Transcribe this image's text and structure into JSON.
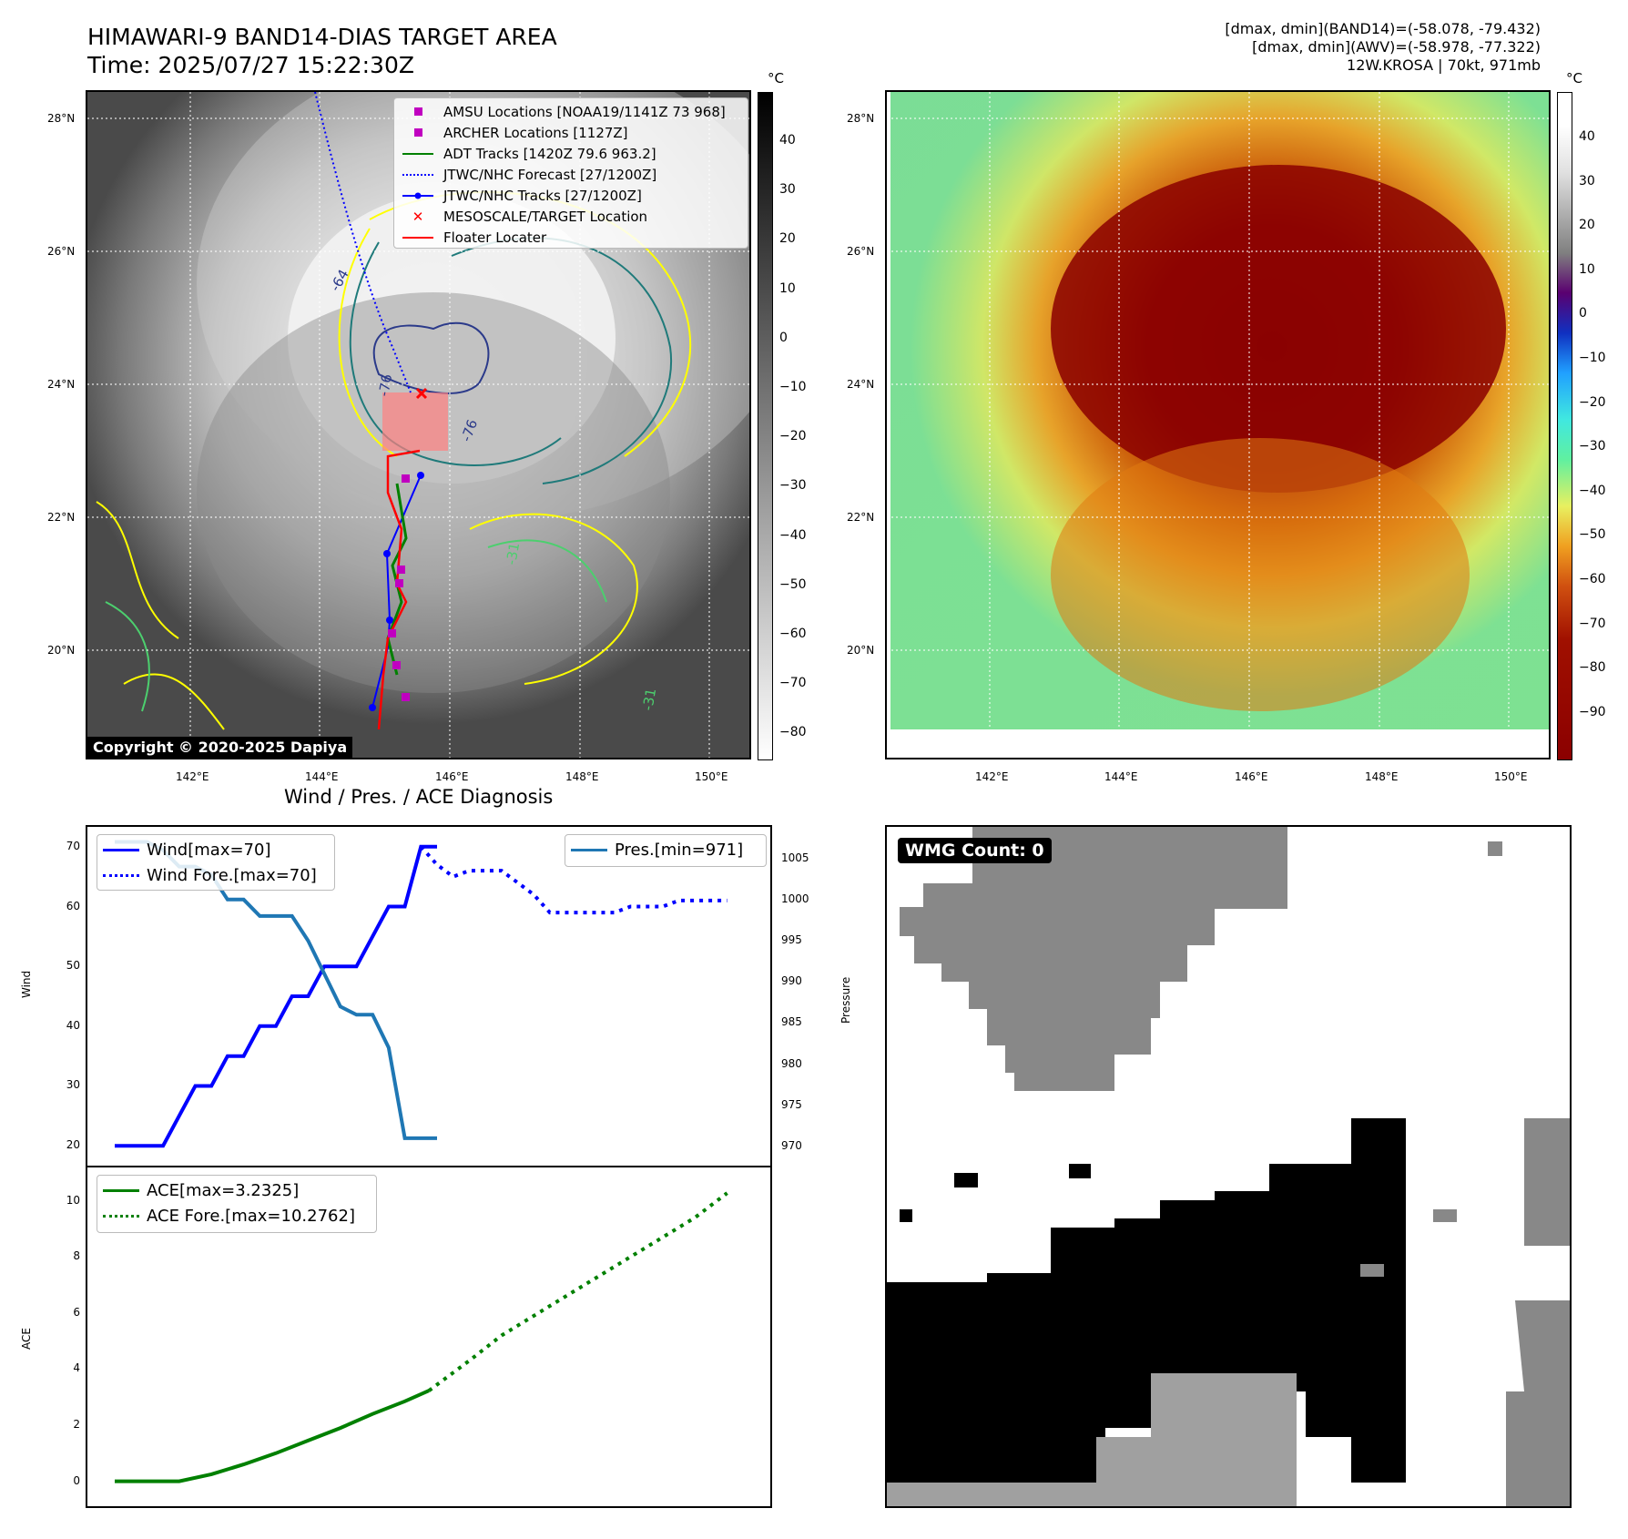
{
  "header": {
    "title_line1": "HIMAWARI-9 BAND14-DIAS TARGET AREA",
    "title_line2": "Time: 2025/07/27 15:22:30Z",
    "right_line1": "[dmax, dmin](BAND14)=(-58.078, -79.432)",
    "right_line2": "[dmax, dmin](AWV)=(-58.978, -77.322)",
    "right_line3": "12W.KROSA | 70kt, 971mb"
  },
  "map_left": {
    "legend": [
      {
        "label": "AMSU Locations [NOAA19/1141Z 73 968]",
        "color": "#c000c0",
        "marker": "square"
      },
      {
        "label": "ARCHER Locations [1127Z]",
        "color": "#c000c0",
        "marker": "square"
      },
      {
        "label": "ADT Tracks [1420Z 79.6 963.2]",
        "color": "#008000",
        "marker": "line"
      },
      {
        "label": "JTWC/NHC Forecast [27/1200Z]",
        "color": "#0000ff",
        "marker": "dotted"
      },
      {
        "label": "JTWC/NHC Tracks [27/1200Z]",
        "color": "#0000ff",
        "marker": "line-dot"
      },
      {
        "label": "MESOSCALE/TARGET Location",
        "color": "#ff0000",
        "marker": "x"
      },
      {
        "label": "Floater Locater",
        "color": "#ff0000",
        "marker": "line"
      }
    ],
    "copyright": "Copyright © 2020-2025 Dapiya",
    "colorbar_unit": "°C",
    "colorbar_ticks": [
      "40",
      "30",
      "20",
      "10",
      "0",
      "−10",
      "−20",
      "−30",
      "−40",
      "−50",
      "−60",
      "−70",
      "−80"
    ],
    "contour_labels": [
      "-64",
      "-76",
      "-76",
      "-31",
      "-31"
    ]
  },
  "map_right": {
    "colorbar_unit": "°C",
    "colorbar_ticks": [
      "40",
      "30",
      "20",
      "10",
      "0",
      "−10",
      "−20",
      "−30",
      "−40",
      "−50",
      "−60",
      "−70",
      "−80",
      "−90"
    ]
  },
  "lat_ticks": [
    "28°N",
    "26°N",
    "24°N",
    "22°N",
    "20°N"
  ],
  "lon_ticks": [
    "142°E",
    "144°E",
    "146°E",
    "148°E",
    "150°E"
  ],
  "diag_title": "Wind / Pres. / ACE Diagnosis",
  "wind_panel": {
    "ylabel": "Wind",
    "ylabel_right": "Pressure",
    "yticks": [
      "70",
      "60",
      "50",
      "40",
      "30",
      "20"
    ],
    "pticks": [
      "1005",
      "1000",
      "995",
      "990",
      "985",
      "980",
      "975",
      "970"
    ],
    "legend_wind": "Wind[max=70]",
    "legend_wind_fore": "Wind Fore.[max=70]",
    "legend_pres": "Pres.[min=971]"
  },
  "ace_panel": {
    "ylabel": "ACE",
    "yticks": [
      "10",
      "8",
      "6",
      "4",
      "2",
      "0"
    ],
    "legend_ace": "ACE[max=3.2325]",
    "legend_ace_fore": "ACE Fore.[max=10.2762]"
  },
  "wmg": {
    "label": "WMG Count: 0"
  },
  "chart_data": [
    {
      "type": "line",
      "title": "Wind / Pres. / ACE Diagnosis",
      "ylabel": "Wind",
      "ylim": [
        18.5,
        71.5
      ],
      "x": [
        0,
        1,
        2,
        3,
        4,
        5,
        6,
        7,
        8,
        9,
        10,
        11,
        12,
        13,
        14,
        15,
        16,
        17,
        18,
        19,
        20
      ],
      "series": [
        {
          "name": "Wind[max=70]",
          "color": "#0000ff",
          "style": "solid",
          "x": [
            0,
            1,
            2,
            3,
            4,
            5,
            6,
            7,
            8,
            9,
            10,
            11,
            12,
            13,
            14,
            15,
            16,
            17,
            18,
            19,
            20
          ],
          "values": [
            20,
            20,
            20,
            20,
            25,
            30,
            30,
            35,
            35,
            40,
            40,
            45,
            45,
            50,
            50,
            50,
            55,
            60,
            60,
            70,
            70
          ]
        },
        {
          "name": "Wind Fore.[max=70]",
          "color": "#0000ff",
          "style": "dotted",
          "x": [
            19,
            20,
            21,
            22,
            23,
            24,
            25,
            26,
            27,
            28,
            29,
            30,
            31,
            32,
            33,
            34,
            35,
            36,
            37,
            38
          ],
          "values": [
            70,
            67,
            65,
            66,
            66,
            66,
            64,
            62,
            59,
            59,
            59,
            59,
            59,
            60,
            60,
            60,
            61,
            61,
            61,
            61
          ]
        }
      ],
      "ylim_right": [
        969,
        1007.5
      ],
      "ylabel_right": "Pressure",
      "series_right": [
        {
          "name": "Pres.[min=971]",
          "color": "#1f77b4",
          "style": "solid",
          "x": [
            0,
            1,
            2,
            3,
            4,
            5,
            6,
            7,
            8,
            9,
            10,
            11,
            12,
            13,
            14,
            15,
            16,
            17,
            18,
            19,
            20
          ],
          "values": [
            1007,
            1007,
            1007,
            1006,
            1004,
            1004,
            1003,
            1000,
            1000,
            998,
            998,
            998,
            995,
            991,
            987,
            986,
            986,
            982,
            971,
            971,
            971
          ]
        }
      ]
    },
    {
      "type": "line",
      "ylabel": "ACE",
      "ylim": [
        -0.5,
        10.8
      ],
      "series": [
        {
          "name": "ACE[max=3.2325]",
          "color": "#008000",
          "style": "solid",
          "x": [
            0,
            2,
            4,
            6,
            8,
            10,
            12,
            14,
            16,
            18,
            19.5
          ],
          "values": [
            0,
            0,
            0,
            0.25,
            0.6,
            1.0,
            1.45,
            1.9,
            2.4,
            2.85,
            3.2325
          ]
        },
        {
          "name": "ACE Fore.[max=10.2762]",
          "color": "#008000",
          "style": "dotted",
          "x": [
            19.5,
            22,
            24,
            26,
            28,
            30,
            32,
            34,
            36,
            38
          ],
          "values": [
            3.2325,
            4.3,
            5.2,
            5.9,
            6.6,
            7.3,
            8.0,
            8.7,
            9.4,
            10.2762
          ]
        }
      ]
    }
  ]
}
